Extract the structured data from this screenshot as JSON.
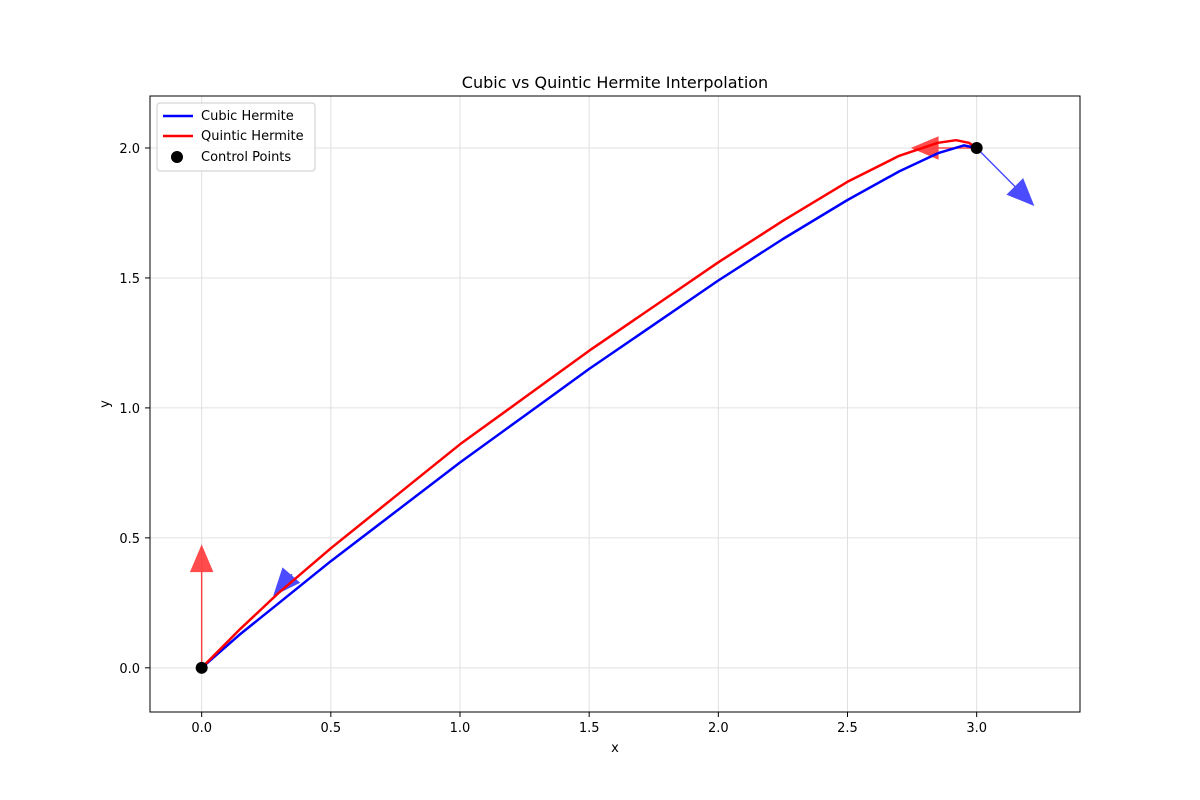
{
  "chart_data": {
    "type": "line",
    "title": "Cubic vs Quintic Hermite Interpolation",
    "xlabel": "x",
    "ylabel": "y",
    "xlim": [
      -0.2,
      3.4
    ],
    "ylim": [
      -0.17,
      2.2
    ],
    "xticks": [
      0.0,
      0.5,
      1.0,
      1.5,
      2.0,
      2.5,
      3.0
    ],
    "xtick_labels": [
      "0.0",
      "0.5",
      "1.0",
      "1.5",
      "2.0",
      "2.5",
      "3.0"
    ],
    "yticks": [
      0.0,
      0.5,
      1.0,
      1.5,
      2.0
    ],
    "ytick_labels": [
      "0.0",
      "0.5",
      "1.0",
      "1.5",
      "2.0"
    ],
    "grid": true,
    "legend_position": "top-left",
    "series": [
      {
        "name": "Cubic Hermite",
        "color": "#0000ff",
        "x": [
          0.0,
          0.15,
          0.3,
          0.5,
          0.75,
          1.0,
          1.25,
          1.5,
          1.75,
          2.0,
          2.25,
          2.5,
          2.7,
          2.85,
          2.95,
          3.0
        ],
        "y": [
          0.0,
          0.13,
          0.25,
          0.41,
          0.6,
          0.79,
          0.97,
          1.15,
          1.32,
          1.49,
          1.65,
          1.8,
          1.91,
          1.98,
          2.01,
          2.0
        ]
      },
      {
        "name": "Quintic Hermite",
        "color": "#ff0000",
        "x": [
          0.0,
          0.15,
          0.3,
          0.5,
          0.75,
          1.0,
          1.25,
          1.5,
          1.75,
          2.0,
          2.25,
          2.5,
          2.7,
          2.85,
          2.92,
          2.97,
          3.0
        ],
        "y": [
          0.0,
          0.15,
          0.29,
          0.46,
          0.66,
          0.86,
          1.04,
          1.22,
          1.39,
          1.56,
          1.72,
          1.87,
          1.97,
          2.02,
          2.03,
          2.02,
          2.0
        ]
      }
    ],
    "control_points": {
      "name": "Control Points",
      "color": "#000000",
      "x": [
        0.0,
        3.0
      ],
      "y": [
        0.0,
        2.0
      ]
    },
    "tangent_arrows": [
      {
        "color": "#ff0000",
        "x0": 0.0,
        "y0": 0.0,
        "dx": 0.0,
        "dy": 0.47
      },
      {
        "color": "#0000ff",
        "x0": 0.35,
        "y0": 0.36,
        "dx": -0.07,
        "dy": -0.08
      },
      {
        "color": "#ff0000",
        "x0": 3.0,
        "y0": 2.0,
        "dx": -0.25,
        "dy": 0.0
      },
      {
        "color": "#0000ff",
        "x0": 3.0,
        "y0": 2.0,
        "dx": 0.22,
        "dy": -0.22
      }
    ]
  }
}
